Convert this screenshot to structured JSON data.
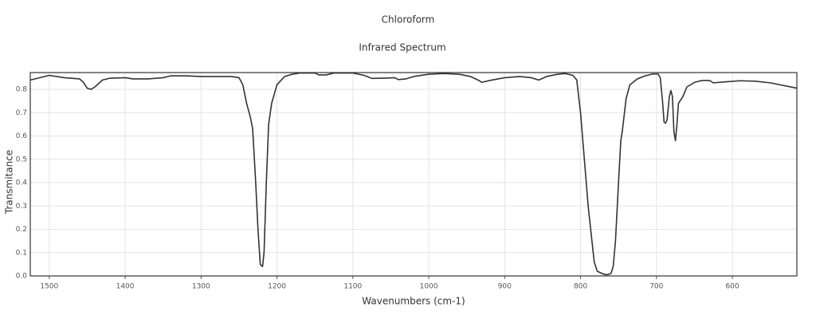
{
  "chart_data": {
    "type": "line",
    "title": "Chloroform",
    "subtitle": "Infrared Spectrum",
    "x_label": "Wavenumbers (cm-1)",
    "y_label": "Transmitance",
    "xlim": [
      1525,
      515
    ],
    "ylim": [
      0,
      0.872
    ],
    "xticks": [
      1500,
      1400,
      1300,
      1200,
      1100,
      1000,
      900,
      800,
      700,
      600
    ],
    "yticks": [
      {
        "value": 0,
        "label": "0.0"
      },
      0.1,
      0.2,
      0.3,
      0.4,
      0.5,
      0.6,
      0.7,
      0.8
    ],
    "grid": true,
    "color": "#333333",
    "x": [
      1525,
      1500,
      1480,
      1460,
      1455,
      1450,
      1445,
      1440,
      1430,
      1420,
      1400,
      1390,
      1370,
      1350,
      1340,
      1320,
      1300,
      1260,
      1250,
      1245,
      1240,
      1235,
      1232,
      1228,
      1225,
      1222,
      1219,
      1217,
      1214,
      1211,
      1207,
      1200,
      1190,
      1180,
      1170,
      1150,
      1145,
      1135,
      1125,
      1100,
      1085,
      1075,
      1060,
      1045,
      1040,
      1030,
      1020,
      1000,
      980,
      960,
      945,
      935,
      930,
      920,
      900,
      880,
      865,
      855,
      845,
      830,
      820,
      810,
      805,
      800,
      795,
      790,
      785,
      782,
      778,
      770,
      765,
      760,
      757,
      754,
      750,
      747,
      745,
      740,
      735,
      725,
      715,
      705,
      698,
      695,
      692,
      690,
      688,
      686,
      683,
      681,
      679,
      677,
      675,
      673,
      671,
      665,
      660,
      650,
      640,
      630,
      625,
      610,
      590,
      570,
      550,
      530,
      515
    ],
    "values": [
      0.84,
      0.86,
      0.85,
      0.845,
      0.83,
      0.805,
      0.8,
      0.81,
      0.84,
      0.848,
      0.85,
      0.845,
      0.845,
      0.85,
      0.858,
      0.858,
      0.855,
      0.855,
      0.85,
      0.82,
      0.74,
      0.68,
      0.63,
      0.4,
      0.2,
      0.05,
      0.04,
      0.1,
      0.4,
      0.65,
      0.74,
      0.82,
      0.855,
      0.865,
      0.87,
      0.87,
      0.862,
      0.862,
      0.87,
      0.87,
      0.86,
      0.847,
      0.848,
      0.85,
      0.842,
      0.845,
      0.855,
      0.865,
      0.868,
      0.865,
      0.855,
      0.84,
      0.83,
      0.838,
      0.85,
      0.855,
      0.85,
      0.84,
      0.855,
      0.865,
      0.868,
      0.86,
      0.84,
      0.7,
      0.5,
      0.3,
      0.15,
      0.06,
      0.02,
      0.008,
      0.005,
      0.01,
      0.04,
      0.15,
      0.4,
      0.58,
      0.62,
      0.76,
      0.82,
      0.845,
      0.858,
      0.866,
      0.866,
      0.85,
      0.75,
      0.66,
      0.655,
      0.67,
      0.77,
      0.795,
      0.77,
      0.62,
      0.58,
      0.65,
      0.74,
      0.77,
      0.81,
      0.83,
      0.838,
      0.838,
      0.828,
      0.832,
      0.837,
      0.835,
      0.828,
      0.815,
      0.805
    ]
  }
}
